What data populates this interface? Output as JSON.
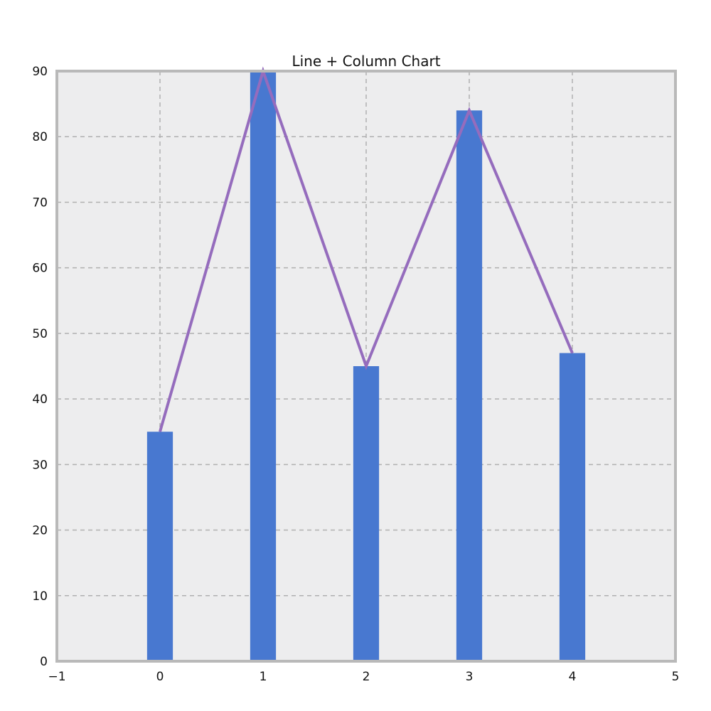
{
  "chart_data": {
    "type": "bar",
    "title": "Line + Column Chart",
    "xlabel": "",
    "ylabel": "",
    "x": [
      0,
      1,
      2,
      3,
      4
    ],
    "series": [
      {
        "type": "bar",
        "values": [
          35,
          90,
          45,
          84,
          47
        ]
      },
      {
        "type": "line",
        "values": [
          35,
          90,
          45,
          84,
          47
        ]
      }
    ],
    "xlim": [
      -1,
      5
    ],
    "ylim": [
      0,
      90
    ],
    "xticks": [
      -1,
      0,
      1,
      2,
      3,
      4,
      5
    ],
    "xtick_labels": [
      "−1",
      "0",
      "1",
      "2",
      "3",
      "4",
      "5"
    ],
    "yticks": [
      0,
      10,
      20,
      30,
      40,
      50,
      60,
      70,
      80,
      90
    ],
    "ytick_labels": [
      "0",
      "10",
      "20",
      "30",
      "40",
      "50",
      "60",
      "70",
      "80",
      "90"
    ],
    "bar_width": 0.25,
    "grid": true,
    "colors": {
      "bar": "#4878d0",
      "line": "#956cbd",
      "plot_background": "#ededee",
      "grid": "#b0b0b0",
      "frame": "#b9b9b9"
    }
  }
}
